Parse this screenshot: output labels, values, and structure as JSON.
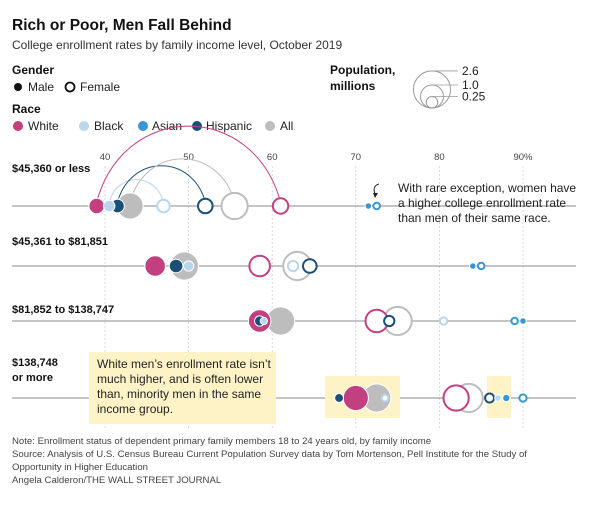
{
  "title": "Rich or Poor, Men Fall Behind",
  "subtitle": "College enrollment rates by family income level, October 2019",
  "legend": {
    "gender_title": "Gender",
    "male_label": "Male",
    "female_label": "Female",
    "race_title": "Race",
    "races": [
      {
        "key": "white",
        "label": "White",
        "color": "#c2407f"
      },
      {
        "key": "black",
        "label": "Black",
        "color": "#b9d6ec"
      },
      {
        "key": "asian",
        "label": "Asian",
        "color": "#3797d3"
      },
      {
        "key": "hispanic",
        "label": "Hispanic",
        "color": "#1b4f78"
      },
      {
        "key": "all",
        "label": "All",
        "color": "#bdbdbd"
      }
    ],
    "population_title_1": "Population,",
    "population_title_2": "millions",
    "population_values": [
      2.6,
      1.0,
      0.25
    ],
    "population_labels": [
      "2.6",
      "1.0",
      "0.25"
    ]
  },
  "chart_data": {
    "type": "scatter",
    "x_axis": {
      "range": [
        32,
        96
      ],
      "ticks": [
        40,
        50,
        60,
        70,
        80,
        90
      ],
      "tick_labels": [
        "40",
        "50",
        "60",
        "70",
        "80",
        "90%"
      ]
    },
    "income_groups": [
      {
        "label_lines": [
          "$45,360 or less"
        ],
        "male": {
          "white": 39,
          "black": 40.5,
          "hispanic": 41.5,
          "all": 43,
          "asian": 71.5
        },
        "female": {
          "white": 61,
          "black": 47,
          "hispanic": 52,
          "all": 55.5,
          "asian": 72.5
        }
      },
      {
        "label_lines": [
          "$45,361 to $81,851"
        ],
        "male": {
          "white": 46,
          "hispanic": 48.5,
          "black": 50,
          "all": 49.5,
          "asian": 84
        },
        "female": {
          "white": 58.5,
          "black": 62.5,
          "all": 63,
          "hispanic": 64.5,
          "asian": 85
        }
      },
      {
        "label_lines": [
          "$81,852 to $138,747"
        ],
        "male": {
          "hispanic": 58.5,
          "white": 58.5,
          "black": 59,
          "all": 61,
          "asian": 90
        },
        "female": {
          "white": 72.5,
          "hispanic": 74,
          "all": 75,
          "black": 80.5,
          "asian": 89
        }
      },
      {
        "label_lines": [
          "$138,748",
          "or more"
        ],
        "male": {
          "hispanic": 68,
          "white": 70,
          "all": 72.5,
          "black": 87,
          "asian": 88
        },
        "female": {
          "black": 73.5,
          "white": 82,
          "all": 83.5,
          "hispanic": 86,
          "asian": 90
        }
      }
    ],
    "population_millions": {
      "g0": {
        "male": {
          "white": 0.45,
          "black": 0.25,
          "hispanic": 0.35,
          "all": 1.3,
          "asian": 0.08
        },
        "female": {
          "white": 0.45,
          "black": 0.3,
          "hispanic": 0.4,
          "all": 1.3,
          "asian": 0.08
        }
      },
      "g1": {
        "male": {
          "white": 0.8,
          "hispanic": 0.35,
          "black": 0.2,
          "all": 1.5,
          "asian": 0.08
        },
        "female": {
          "white": 0.8,
          "black": 0.2,
          "all": 1.5,
          "hispanic": 0.35,
          "asian": 0.08
        }
      },
      "g2": {
        "male": {
          "hispanic": 0.2,
          "white": 0.95,
          "black": 0.1,
          "all": 1.5,
          "asian": 0.08
        },
        "female": {
          "white": 0.95,
          "hispanic": 0.2,
          "all": 1.5,
          "black": 0.1,
          "asian": 0.08
        }
      },
      "g3": {
        "male": {
          "hispanic": 0.15,
          "white": 1.2,
          "all": 1.5,
          "black": 0.08,
          "asian": 0.1
        },
        "female": {
          "black": 0.08,
          "white": 1.2,
          "all": 1.5,
          "hispanic": 0.15,
          "asian": 0.1
        }
      }
    }
  },
  "annotations": {
    "rare_exception_lines": [
      "With rare exception, women have",
      "a higher college enrollment rate",
      "than men of their same race."
    ],
    "white_men_lines": [
      "White men’s enrollment rate isn’t",
      "much higher, and is often lower",
      "than, minority men in the same",
      "income group."
    ],
    "highlight_color": "#fdf3c6"
  },
  "footer": {
    "note": "Note: Enrollment status of dependent primary family members 18 to 24 years old, by family income",
    "source_line1": "Source: Analysis of U.S. Census Bureau Current Population Survey data by Tom Mortenson, Pell Institute for the Study of",
    "source_line2": "Opportunity in Higher Education",
    "credit": "Angela Calderon/THE WALL STREET JOURNAL"
  }
}
